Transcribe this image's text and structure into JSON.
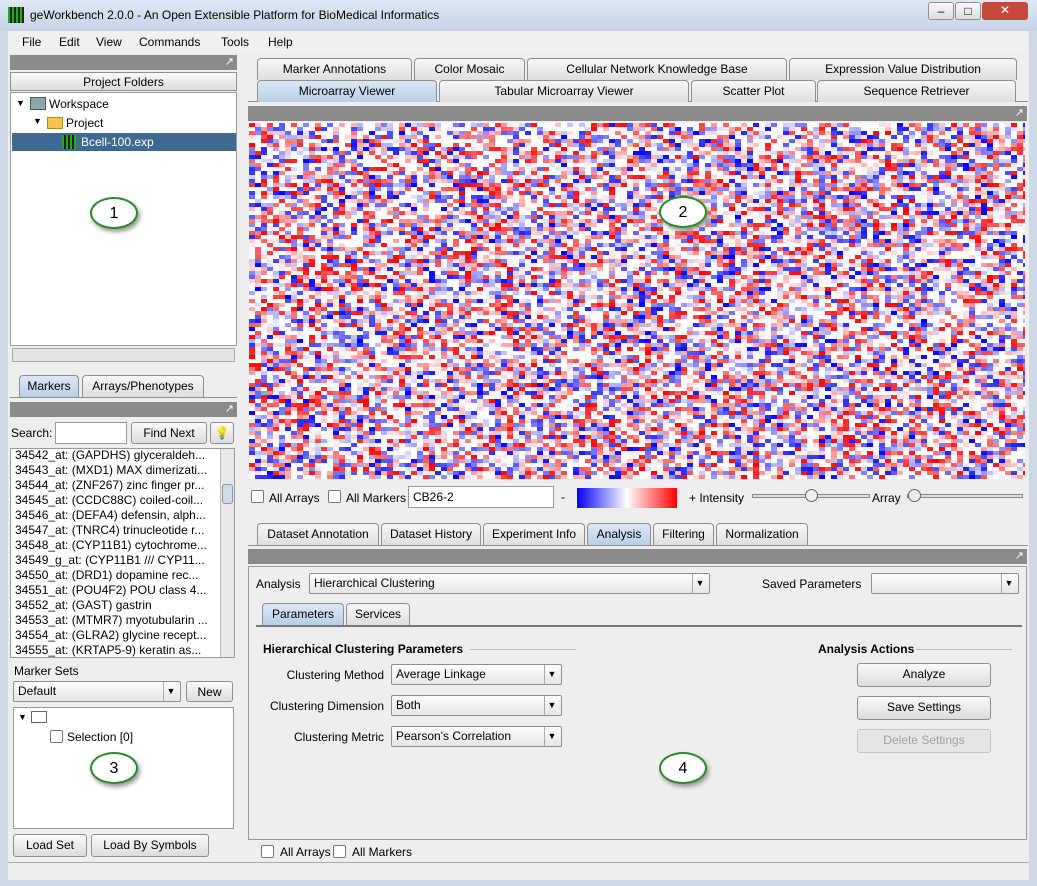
{
  "window": {
    "title": "geWorkbench 2.0.0 - An Open Extensible Platform for BioMedical Informatics"
  },
  "menu": [
    "File",
    "Edit",
    "View",
    "Commands",
    "Tools",
    "Help"
  ],
  "project_panel": {
    "header": "Project Folders",
    "tree": [
      "Workspace",
      "Project",
      "Bcell-100.exp"
    ],
    "callout": "1"
  },
  "marker_panel": {
    "tabs": [
      "Markers",
      "Arrays/Phenotypes"
    ],
    "search_label": "Search:",
    "find_next": "Find Next",
    "markers": [
      "34542_at: (GAPDHS) glyceraldeh...",
      "34543_at: (MXD1) MAX dimerizati...",
      "34544_at: (ZNF267) zinc finger pr...",
      "34545_at: (CCDC88C) coiled-coil...",
      "34546_at: (DEFA4) defensin, alph...",
      "34547_at: (TNRC4) trinucleotide r...",
      "34548_at: (CYP11B1) cytochrome...",
      "34549_g_at: (CYP11B1 /// CYP11...",
      "34550_at: (DRD1) dopamine rec...",
      "34551_at: (POU4F2) POU class 4...",
      "34552_at: (GAST) gastrin",
      "34553_at: (MTMR7) myotubularin ...",
      "34554_at: (GLRA2) glycine recept...",
      "34555_at: (KRTAP5-9) keratin as..."
    ],
    "marker_sets_label": "Marker Sets",
    "set_select": "Default",
    "new_button": "New",
    "selection": "Selection [0]",
    "callout": "3",
    "load_set": "Load Set",
    "load_by_symbols": "Load By Symbols"
  },
  "viewer": {
    "tabs_row1": [
      "Marker Annotations",
      "Color Mosaic",
      "Cellular Network Knowledge Base",
      "Expression Value Distribution"
    ],
    "tabs_row2": [
      "Microarray Viewer",
      "Tabular Microarray Viewer",
      "Scatter Plot",
      "Sequence Retriever"
    ],
    "callout": "2",
    "all_arrays": "All Arrays",
    "all_markers": "All Markers",
    "array_field": "CB26-2",
    "minus": "-",
    "intensity": "+ Intensity",
    "array": "Array"
  },
  "analysis": {
    "tabs": [
      "Dataset Annotation",
      "Dataset History",
      "Experiment Info",
      "Analysis",
      "Filtering",
      "Normalization"
    ],
    "analysis_label": "Analysis",
    "analysis_select": "Hierarchical Clustering",
    "saved_parameters": "Saved Parameters",
    "subtabs": [
      "Parameters",
      "Services"
    ],
    "params_title": "Hierarchical Clustering Parameters",
    "params": [
      {
        "label": "Clustering Method",
        "value": "Average Linkage"
      },
      {
        "label": "Clustering Dimension",
        "value": "Both"
      },
      {
        "label": "Clustering Metric",
        "value": "Pearson's Correlation"
      }
    ],
    "actions_title": "Analysis Actions",
    "buttons": [
      "Analyze",
      "Save Settings",
      "Delete Settings"
    ],
    "callout": "4"
  },
  "status": {
    "all_arrays": "All Arrays",
    "all_markers": "All Markers"
  }
}
